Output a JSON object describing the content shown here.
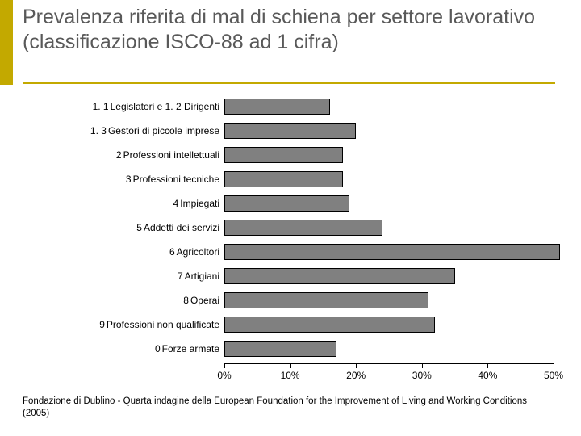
{
  "accent_color": "#c3a900",
  "underline_color": "#c3a900",
  "title": "Prevalenza riferita di mal di schiena per settore lavorativo (classificazione ISCO-88 ad 1 cifra)",
  "title_color": "#595959",
  "title_fontsize": 25,
  "chart": {
    "type": "bar",
    "orientation": "horizontal",
    "bar_fill": "#808080",
    "bar_border": "#000000",
    "xlim": [
      0,
      50
    ],
    "xtick_step": 10,
    "xtick_labels": [
      "0%",
      "10%",
      "20%",
      "30%",
      "40%",
      "50%"
    ],
    "label_fontsize": 12,
    "tick_fontsize": 12,
    "categories": [
      {
        "num": "1. 1",
        "text": "Legislatori e  1. 2 Dirigenti",
        "value": 16
      },
      {
        "num": "1. 3",
        "text": "Gestori di piccole imprese",
        "value": 20
      },
      {
        "num": "2",
        "text": "Professioni intellettuali",
        "value": 18
      },
      {
        "num": "3",
        "text": "Professioni tecniche",
        "value": 18
      },
      {
        "num": "4",
        "text": "Impiegati",
        "value": 19
      },
      {
        "num": "5",
        "text": "Addetti dei servizi",
        "value": 24
      },
      {
        "num": "6",
        "text": "Agricoltori",
        "value": 51
      },
      {
        "num": "7",
        "text": "Artigiani",
        "value": 35
      },
      {
        "num": "8",
        "text": "Operai",
        "value": 31
      },
      {
        "num": "9",
        "text": "Professioni non qualificate",
        "value": 32
      },
      {
        "num": "0",
        "text": "Forze armate",
        "value": 17
      }
    ]
  },
  "footer": "Fondazione di Dublino - Quarta indagine della European Foundation for the Improvement of Living and Working Conditions (2005)"
}
